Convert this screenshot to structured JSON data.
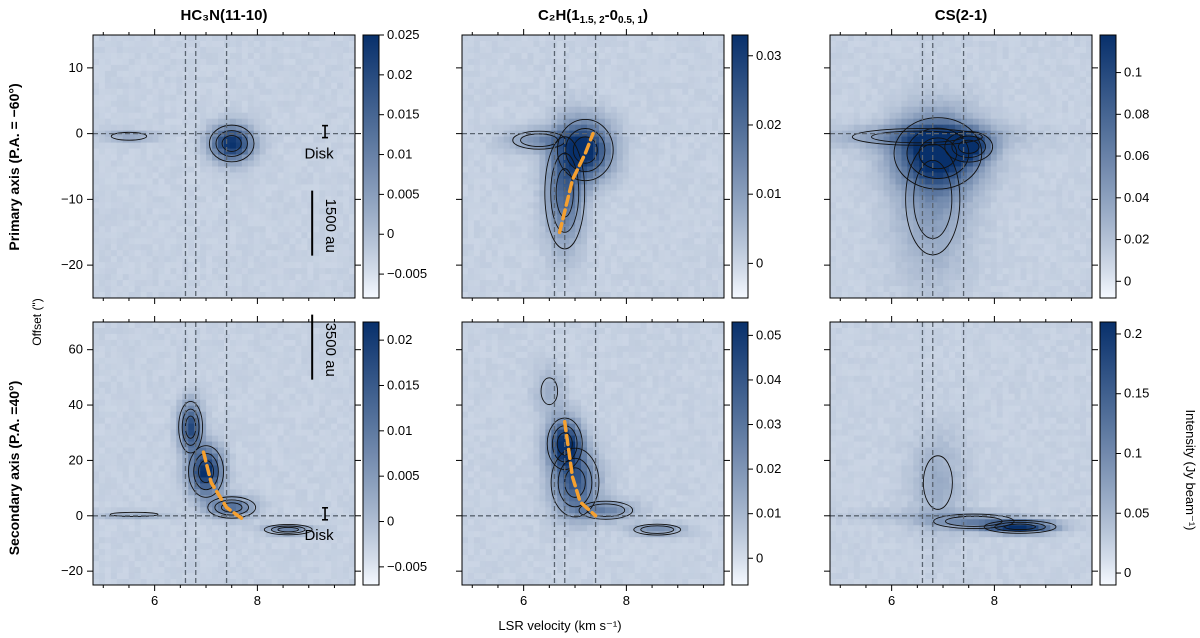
{
  "figure": {
    "xlabel": "LSR velocity (km s⁻¹)",
    "ylabel_shared": "Offset (\")",
    "cbar_label": "Intensity (Jy beam⁻¹)",
    "row_labels": [
      "Primary axis (P.A. = −60°)",
      "Secondary axis (P.A. =40°)"
    ]
  },
  "chart_data": [
    {
      "type": "heatmap",
      "panel": "HC3N primary",
      "title": "HC₃N(11-10)",
      "row": 0,
      "col": 0,
      "xlim": [
        4.8,
        9.9
      ],
      "ylim": [
        -25,
        15
      ],
      "xticks": [
        6,
        8
      ],
      "yticks": [
        10,
        0,
        -10,
        -20
      ],
      "vlines": [
        6.6,
        6.8,
        7.4
      ],
      "hline": 0,
      "colorbar": {
        "ticks": [
          "0.025",
          "0.02",
          "0.015",
          "0.01",
          "0.005",
          "0",
          "-0.005"
        ],
        "tickvals": [
          0.025,
          0.02,
          0.015,
          0.01,
          0.005,
          0,
          -0.005
        ],
        "range": [
          -0.008,
          0.025
        ]
      },
      "annotations": [
        {
          "text": "Disk",
          "x": 9.2,
          "y": -3
        },
        {
          "text": "1500 au",
          "x": 9.3,
          "y": -14
        }
      ],
      "features": [
        {
          "x": 7.5,
          "y": -1.5,
          "sx": 0.28,
          "sy": 1.8,
          "amp": 0.022
        },
        {
          "x": 5.5,
          "y": -0.4,
          "sx": 0.35,
          "sy": 0.6,
          "amp": 0.006
        }
      ],
      "fit": []
    },
    {
      "type": "heatmap",
      "panel": "C2H primary",
      "title": "C₂H(1",
      "title_sub1": "1.5, 2",
      "title_mid": "-0",
      "title_sub2": "0.5, 1",
      "title_end": ")",
      "row": 0,
      "col": 1,
      "xlim": [
        4.8,
        9.9
      ],
      "ylim": [
        -25,
        15
      ],
      "xticks": [
        6,
        8
      ],
      "yticks": [
        10,
        0,
        -10,
        -20
      ],
      "vlines": [
        6.6,
        6.8,
        7.4
      ],
      "hline": 0,
      "colorbar": {
        "ticks": [
          "0.03",
          "0.02",
          "0.01",
          "0"
        ],
        "tickvals": [
          0.03,
          0.02,
          0.01,
          0
        ],
        "range": [
          -0.005,
          0.033
        ]
      },
      "annotations": [],
      "features": [
        {
          "x": 7.2,
          "y": -2.5,
          "sx": 0.35,
          "sy": 3.0,
          "amp": 0.03
        },
        {
          "x": 6.8,
          "y": -9,
          "sx": 0.25,
          "sy": 5.5,
          "amp": 0.018
        },
        {
          "x": 6.3,
          "y": -1,
          "sx": 0.45,
          "sy": 1.2,
          "amp": 0.01
        }
      ],
      "fit": [
        [
          6.7,
          -15
        ],
        [
          6.95,
          -7
        ],
        [
          7.2,
          -3
        ],
        [
          7.35,
          0
        ]
      ]
    },
    {
      "type": "heatmap",
      "panel": "CS primary",
      "title": "CS(2-1)",
      "row": 0,
      "col": 2,
      "xlim": [
        4.8,
        9.9
      ],
      "ylim": [
        -25,
        15
      ],
      "xticks": [
        6,
        8
      ],
      "yticks": [
        10,
        0,
        -10,
        -20
      ],
      "vlines": [
        6.6,
        6.8,
        7.4
      ],
      "hline": 0,
      "colorbar": {
        "ticks": [
          "0.1",
          "0.08",
          "0.06",
          "0.04",
          "0.02",
          "0"
        ],
        "tickvals": [
          0.1,
          0.08,
          0.06,
          0.04,
          0.02,
          0
        ],
        "range": [
          -0.008,
          0.118
        ]
      },
      "annotations": [],
      "features": [
        {
          "x": 6.9,
          "y": -3,
          "sx": 0.55,
          "sy": 3.5,
          "amp": 0.1
        },
        {
          "x": 7.5,
          "y": -2,
          "sx": 0.3,
          "sy": 1.5,
          "amp": 0.06
        },
        {
          "x": 6.8,
          "y": -10,
          "sx": 0.5,
          "sy": 8,
          "amp": 0.03
        },
        {
          "x": 6.5,
          "y": -0.5,
          "sx": 1.2,
          "sy": 1.2,
          "amp": 0.03
        }
      ],
      "fit": []
    },
    {
      "type": "heatmap",
      "panel": "HC3N secondary",
      "title": "",
      "row": 1,
      "col": 0,
      "xlim": [
        4.8,
        9.9
      ],
      "ylim": [
        -25,
        70
      ],
      "xticks": [
        6,
        8
      ],
      "yticks": [
        60,
        40,
        20,
        0,
        -20
      ],
      "vlines": [
        6.6,
        6.8,
        7.4
      ],
      "hline": 0,
      "colorbar": {
        "ticks": [
          "0.02",
          "0.015",
          "0.01",
          "0.005",
          "0",
          "-0.005"
        ],
        "tickvals": [
          0.02,
          0.015,
          0.01,
          0.005,
          0,
          -0.005
        ],
        "range": [
          -0.007,
          0.022
        ]
      },
      "annotations": [
        {
          "text": "3500 au",
          "x": 9.3,
          "y": 60
        },
        {
          "text": "Disk",
          "x": 9.2,
          "y": -7
        }
      ],
      "features": [
        {
          "x": 6.7,
          "y": 32,
          "sx": 0.15,
          "sy": 6,
          "amp": 0.016
        },
        {
          "x": 7.0,
          "y": 16,
          "sx": 0.22,
          "sy": 6,
          "amp": 0.02
        },
        {
          "x": 7.5,
          "y": 3,
          "sx": 0.3,
          "sy": 2.5,
          "amp": 0.012
        },
        {
          "x": 8.6,
          "y": -5,
          "sx": 0.3,
          "sy": 1.2,
          "amp": 0.01
        },
        {
          "x": 5.6,
          "y": 0.5,
          "sx": 0.5,
          "sy": 0.8,
          "amp": 0.005
        }
      ],
      "fit": [
        [
          6.95,
          23
        ],
        [
          7.1,
          12
        ],
        [
          7.4,
          3
        ],
        [
          7.7,
          -1
        ]
      ]
    },
    {
      "type": "heatmap",
      "panel": "C2H secondary",
      "title": "",
      "row": 1,
      "col": 1,
      "xlim": [
        4.8,
        9.9
      ],
      "ylim": [
        -25,
        70
      ],
      "xticks": [
        6,
        8
      ],
      "yticks": [
        60,
        40,
        20,
        0,
        -20
      ],
      "vlines": [
        6.6,
        6.8,
        7.4
      ],
      "hline": 0,
      "colorbar": {
        "ticks": [
          "0.05",
          "0.04",
          "0.03",
          "0.02",
          "0.01",
          "0"
        ],
        "tickvals": [
          0.05,
          0.04,
          0.03,
          0.02,
          0.01,
          0
        ],
        "range": [
          -0.006,
          0.053
        ]
      },
      "annotations": [],
      "features": [
        {
          "x": 6.8,
          "y": 26,
          "sx": 0.22,
          "sy": 6,
          "amp": 0.05
        },
        {
          "x": 7.0,
          "y": 12,
          "sx": 0.3,
          "sy": 8,
          "amp": 0.035
        },
        {
          "x": 7.6,
          "y": 2,
          "sx": 0.4,
          "sy": 2.5,
          "amp": 0.02
        },
        {
          "x": 8.6,
          "y": -5,
          "sx": 0.35,
          "sy": 1.5,
          "amp": 0.02
        },
        {
          "x": 6.5,
          "y": 45,
          "sx": 0.2,
          "sy": 6,
          "amp": 0.01
        }
      ],
      "fit": [
        [
          6.8,
          34
        ],
        [
          6.95,
          14
        ],
        [
          7.1,
          5
        ],
        [
          7.4,
          0
        ]
      ]
    },
    {
      "type": "heatmap",
      "panel": "CS secondary",
      "title": "",
      "row": 1,
      "col": 2,
      "xlim": [
        4.8,
        9.9
      ],
      "ylim": [
        -25,
        70
      ],
      "xticks": [
        6,
        8
      ],
      "yticks": [
        60,
        40,
        20,
        0,
        -20
      ],
      "vlines": [
        6.6,
        6.8,
        7.4
      ],
      "hline": 0,
      "colorbar": {
        "ticks": [
          "0.2",
          "0.15",
          "0.1",
          "0.05",
          "0"
        ],
        "tickvals": [
          0.2,
          0.15,
          0.1,
          0.05,
          0
        ],
        "range": [
          -0.01,
          0.21
        ]
      },
      "annotations": [],
      "features": [
        {
          "x": 8.5,
          "y": -4,
          "sx": 0.45,
          "sy": 1.5,
          "amp": 0.2
        },
        {
          "x": 7.6,
          "y": -2,
          "sx": 0.6,
          "sy": 2.0,
          "amp": 0.08
        },
        {
          "x": 6.9,
          "y": 12,
          "sx": 0.35,
          "sy": 12,
          "amp": 0.04
        },
        {
          "x": 6.0,
          "y": 0,
          "sx": 0.8,
          "sy": 1.5,
          "amp": 0.02
        }
      ],
      "fit": []
    }
  ],
  "colors": {
    "low": "#f5f9ff",
    "high": "#08306b",
    "fit": "#f5a030",
    "guide": "#5a6470"
  }
}
